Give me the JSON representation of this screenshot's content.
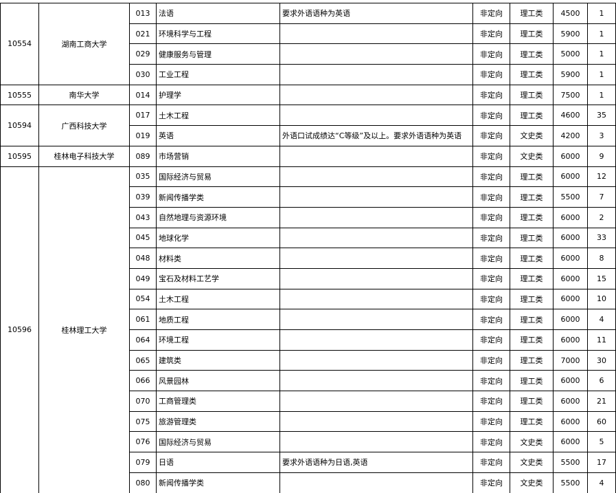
{
  "groups": [
    {
      "code": "10554",
      "name": "湖南工商大学",
      "majors": [
        {
          "code": "013",
          "name": "法语",
          "note": "要求外语语种为英语",
          "plan": "非定向",
          "category": "理工类",
          "fee": "4500",
          "count": "1"
        },
        {
          "code": "021",
          "name": "环境科学与工程",
          "plan": "非定向",
          "category": "理工类",
          "fee": "5900",
          "count": "1"
        },
        {
          "code": "029",
          "name": "健康服务与管理",
          "plan": "非定向",
          "category": "理工类",
          "fee": "5000",
          "count": "1"
        },
        {
          "code": "030",
          "name": "工业工程",
          "plan": "非定向",
          "category": "理工类",
          "fee": "5900",
          "count": "1"
        }
      ]
    },
    {
      "code": "10555",
      "name": "南华大学",
      "majors": [
        {
          "code": "014",
          "name": "护理学",
          "plan": "非定向",
          "category": "理工类",
          "fee": "7500",
          "count": "1"
        }
      ]
    },
    {
      "code": "10594",
      "name": "广西科技大学",
      "majors": [
        {
          "code": "017",
          "name": "土木工程",
          "plan": "非定向",
          "category": "理工类",
          "fee": "4600",
          "count": "35"
        },
        {
          "code": "019",
          "name": "英语",
          "note": "外语口试成绩达“C等级”及以上。要求外语语种为英语",
          "plan": "非定向",
          "category": "文史类",
          "fee": "4200",
          "count": "3"
        }
      ]
    },
    {
      "code": "10595",
      "name": "桂林电子科技大学",
      "majors": [
        {
          "code": "089",
          "name": "市场营销",
          "plan": "非定向",
          "category": "文史类",
          "fee": "6000",
          "count": "9"
        }
      ]
    },
    {
      "code": "10596",
      "name": "桂林理工大学",
      "majors": [
        {
          "code": "035",
          "name": "国际经济与贸易",
          "plan": "非定向",
          "category": "理工类",
          "fee": "6000",
          "count": "12"
        },
        {
          "code": "039",
          "name": "新闻传播学类",
          "plan": "非定向",
          "category": "理工类",
          "fee": "5500",
          "count": "7"
        },
        {
          "code": "043",
          "name": "自然地理与资源环境",
          "plan": "非定向",
          "category": "理工类",
          "fee": "6000",
          "count": "2"
        },
        {
          "code": "045",
          "name": "地球化学",
          "plan": "非定向",
          "category": "理工类",
          "fee": "6000",
          "count": "33"
        },
        {
          "code": "048",
          "name": "材料类",
          "plan": "非定向",
          "category": "理工类",
          "fee": "6000",
          "count": "8"
        },
        {
          "code": "049",
          "name": "宝石及材料工艺学",
          "plan": "非定向",
          "category": "理工类",
          "fee": "6000",
          "count": "15"
        },
        {
          "code": "054",
          "name": "土木工程",
          "plan": "非定向",
          "category": "理工类",
          "fee": "6000",
          "count": "10"
        },
        {
          "code": "061",
          "name": "地质工程",
          "plan": "非定向",
          "category": "理工类",
          "fee": "6000",
          "count": "4"
        },
        {
          "code": "064",
          "name": "环境工程",
          "plan": "非定向",
          "category": "理工类",
          "fee": "6000",
          "count": "11"
        },
        {
          "code": "065",
          "name": "建筑类",
          "plan": "非定向",
          "category": "理工类",
          "fee": "7000",
          "count": "30"
        },
        {
          "code": "066",
          "name": "风景园林",
          "plan": "非定向",
          "category": "理工类",
          "fee": "6000",
          "count": "6"
        },
        {
          "code": "070",
          "name": "工商管理类",
          "plan": "非定向",
          "category": "理工类",
          "fee": "6000",
          "count": "21"
        },
        {
          "code": "075",
          "name": "旅游管理类",
          "plan": "非定向",
          "category": "理工类",
          "fee": "6000",
          "count": "60"
        },
        {
          "code": "076",
          "name": "国际经济与贸易",
          "plan": "非定向",
          "category": "文史类",
          "fee": "6000",
          "count": "5"
        },
        {
          "code": "079",
          "name": "日语",
          "note": "要求外语语种为日语,英语",
          "plan": "非定向",
          "category": "文史类",
          "fee": "5500",
          "count": "17"
        },
        {
          "code": "080",
          "name": "新闻传播学类",
          "plan": "非定向",
          "category": "文史类",
          "fee": "5500",
          "count": "4"
        }
      ]
    }
  ]
}
